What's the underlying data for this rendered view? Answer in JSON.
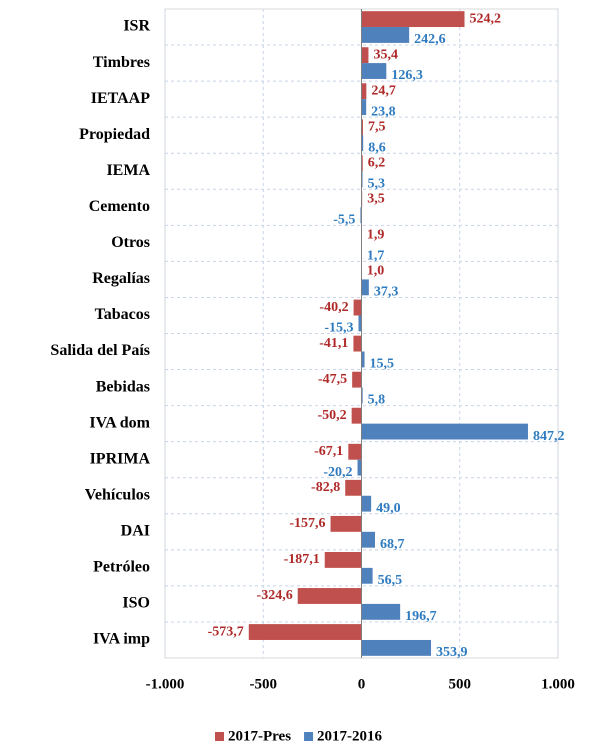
{
  "chart_data": {
    "type": "hbar",
    "categories": [
      "ISR",
      "Timbres",
      "IETAAP",
      "Propiedad",
      "IEMA",
      "Cemento",
      "Otros",
      "Regalías",
      "Tabacos",
      "Salida del País",
      "Bebidas",
      "IVA dom",
      "IPRIMA",
      "Vehículos",
      "DAI",
      "Petróleo",
      "ISO",
      "IVA imp"
    ],
    "series": [
      {
        "name": "2017-Pres",
        "color": "#c0504d",
        "values": [
          524.2,
          35.4,
          24.7,
          7.5,
          6.2,
          3.5,
          1.9,
          1.0,
          -40.2,
          -41.1,
          -47.5,
          -50.2,
          -67.1,
          -82.8,
          -157.6,
          -187.1,
          -324.6,
          -573.7
        ],
        "value_labels": [
          "524,2",
          "35,4",
          "24,7",
          "7,5",
          "6,2",
          "3,5",
          "1,9",
          "1,0",
          "-40,2",
          "-41,1",
          "-47,5",
          "-50,2",
          "-67,1",
          "-82,8",
          "-157,6",
          "-187,1",
          "-324,6",
          "-573,7"
        ]
      },
      {
        "name": "2017-2016",
        "color": "#4f81bd",
        "values": [
          242.6,
          126.3,
          23.8,
          8.6,
          5.3,
          -5.5,
          1.7,
          37.3,
          -15.3,
          15.5,
          5.8,
          847.2,
          -20.2,
          49.0,
          68.7,
          56.5,
          196.7,
          353.9
        ],
        "value_labels": [
          "242,6",
          "126,3",
          "23,8",
          "8,6",
          "5,3",
          "-5,5",
          "1,7",
          "37,3",
          "-15,3",
          "15,5",
          "5,8",
          "847,2",
          "-20,2",
          "49,0",
          "68,7",
          "56,5",
          "196,7",
          "353,9"
        ]
      }
    ],
    "xlim": [
      -1000,
      1000
    ],
    "xticks": [
      {
        "value": -1000,
        "label": "-1.000"
      },
      -500,
      0,
      500,
      {
        "value": 1000,
        "label": "1.000"
      }
    ],
    "grid": true,
    "legend": "bottom"
  }
}
